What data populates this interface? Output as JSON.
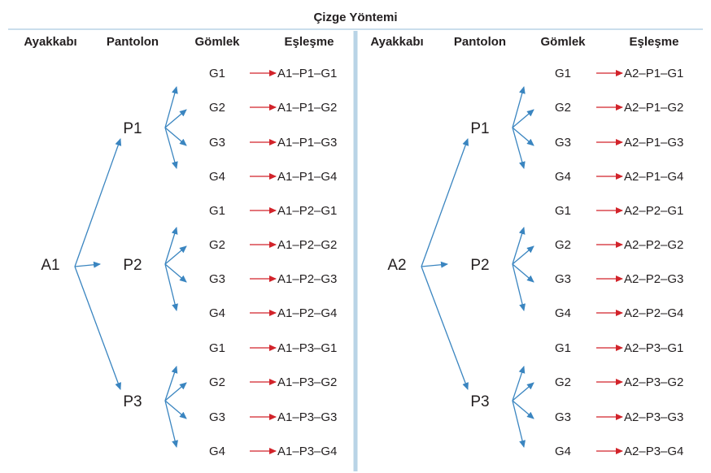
{
  "title": "Çizge Yöntemi",
  "headers": [
    "Ayakkabı",
    "Pantolon",
    "Gömlek",
    "Eşleşme"
  ],
  "colors": {
    "tree_arrow": "#3a85c0",
    "pair_arrow": "#d2232a",
    "divider": "#b9d4e6",
    "rule": "#b9d4e6",
    "text": "#231f20"
  },
  "panels": [
    {
      "root": "A1",
      "branches": [
        {
          "label": "P1",
          "leaves": [
            {
              "shirt": "G1",
              "match": "A1–P1–G1"
            },
            {
              "shirt": "G2",
              "match": "A1–P1–G2"
            },
            {
              "shirt": "G3",
              "match": "A1–P1–G3"
            },
            {
              "shirt": "G4",
              "match": "A1–P1–G4"
            }
          ]
        },
        {
          "label": "P2",
          "leaves": [
            {
              "shirt": "G1",
              "match": "A1–P2–G1"
            },
            {
              "shirt": "G2",
              "match": "A1–P2–G2"
            },
            {
              "shirt": "G3",
              "match": "A1–P2–G3"
            },
            {
              "shirt": "G4",
              "match": "A1–P2–G4"
            }
          ]
        },
        {
          "label": "P3",
          "leaves": [
            {
              "shirt": "G1",
              "match": "A1–P3–G1"
            },
            {
              "shirt": "G2",
              "match": "A1–P3–G2"
            },
            {
              "shirt": "G3",
              "match": "A1–P3–G3"
            },
            {
              "shirt": "G4",
              "match": "A1–P3–G4"
            }
          ]
        }
      ]
    },
    {
      "root": "A2",
      "branches": [
        {
          "label": "P1",
          "leaves": [
            {
              "shirt": "G1",
              "match": "A2–P1–G1"
            },
            {
              "shirt": "G2",
              "match": "A2–P1–G2"
            },
            {
              "shirt": "G3",
              "match": "A2–P1–G3"
            },
            {
              "shirt": "G4",
              "match": "A2–P1–G4"
            }
          ]
        },
        {
          "label": "P2",
          "leaves": [
            {
              "shirt": "G1",
              "match": "A2–P2–G1"
            },
            {
              "shirt": "G2",
              "match": "A2–P2–G2"
            },
            {
              "shirt": "G3",
              "match": "A2–P2–G3"
            },
            {
              "shirt": "G4",
              "match": "A2–P2–G4"
            }
          ]
        },
        {
          "label": "P3",
          "leaves": [
            {
              "shirt": "G1",
              "match": "A2–P3–G1"
            },
            {
              "shirt": "G2",
              "match": "A2–P3–G2"
            },
            {
              "shirt": "G3",
              "match": "A2–P3–G3"
            },
            {
              "shirt": "G4",
              "match": "A2–P3–G4"
            }
          ]
        }
      ]
    }
  ]
}
